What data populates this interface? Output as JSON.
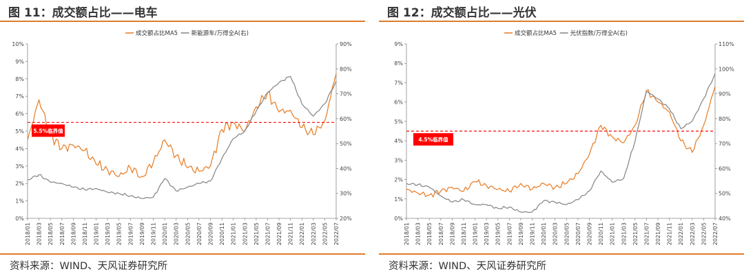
{
  "chart_data": [
    {
      "type": "line",
      "figure_title": "图 11：成交额占比——电车",
      "source": "资料来源：WIND、天风证券研究所",
      "legend_position": "top-center",
      "x_labels": [
        "2018/01",
        "2018/03",
        "2018/05",
        "2018/07",
        "2018/09",
        "2018/11",
        "2019/01",
        "2019/03",
        "2019/05",
        "2019/07",
        "2019/09",
        "2019/11",
        "2020/01",
        "2020/03",
        "2020/05",
        "2020/07",
        "2020/09",
        "2020/11",
        "2021/01",
        "2021/03",
        "2021/05",
        "2021/07",
        "2021/09",
        "2021/11",
        "2022/01",
        "2022/03",
        "2022/05",
        "2022/07"
      ],
      "left_axis": {
        "min": 0,
        "max": 10,
        "ticks": [
          "0%",
          "1%",
          "2%",
          "3%",
          "4%",
          "5%",
          "6%",
          "7%",
          "8%",
          "9%",
          "10%"
        ]
      },
      "right_axis": {
        "min": 20,
        "max": 90,
        "ticks": [
          "20%",
          "30%",
          "40%",
          "50%",
          "60%",
          "70%",
          "80%",
          "90%"
        ]
      },
      "threshold": {
        "value": 5.5,
        "label": "5.5%临界值",
        "color": "#ff0000"
      },
      "series": [
        {
          "name": "成交额占比MA5",
          "axis": "left",
          "color": "#e8822e",
          "x": [
            0,
            1,
            2,
            3,
            4,
            5,
            6,
            7,
            8,
            9,
            10,
            11,
            12,
            13,
            14,
            15,
            16,
            17,
            18,
            19,
            20,
            21,
            22,
            23,
            24,
            25,
            26,
            27
          ],
          "values": [
            4.5,
            6.8,
            4.8,
            4.0,
            4.2,
            3.9,
            3.1,
            2.8,
            2.4,
            2.9,
            2.4,
            3.2,
            4.5,
            3.6,
            2.9,
            2.7,
            3.0,
            5.1,
            5.5,
            5.0,
            6.4,
            7.2,
            6.1,
            6.2,
            5.2,
            4.8,
            5.6,
            8.3
          ]
        },
        {
          "name": "新能源车/万得全A(右)",
          "axis": "right",
          "color": "#8a8a8a",
          "x": [
            0,
            1,
            2,
            3,
            4,
            5,
            6,
            7,
            8,
            9,
            10,
            11,
            12,
            13,
            14,
            15,
            16,
            17,
            18,
            19,
            20,
            21,
            22,
            23,
            24,
            25,
            26,
            27
          ],
          "values": [
            35.5,
            37.5,
            34.5,
            34.0,
            32.5,
            31.5,
            32.0,
            30.5,
            30.0,
            29.0,
            28.0,
            28.5,
            36.0,
            31.0,
            32.5,
            34.0,
            35.0,
            44.0,
            52.0,
            55.0,
            63.0,
            70.5,
            74.5,
            77.0,
            66.0,
            61.0,
            66.0,
            75.0
          ]
        }
      ]
    },
    {
      "type": "line",
      "figure_title": "图 12：成交额占比——光伏",
      "source": "资料来源：WIND、天风证券研究所",
      "legend_position": "top-center",
      "x_labels": [
        "2018/01",
        "2018/03",
        "2018/05",
        "2018/07",
        "2018/09",
        "2018/11",
        "2019/01",
        "2019/03",
        "2019/05",
        "2019/07",
        "2019/09",
        "2019/11",
        "2020/01",
        "2020/03",
        "2020/05",
        "2020/07",
        "2020/09",
        "2020/11",
        "2021/01",
        "2021/03",
        "2021/05",
        "2021/07",
        "2021/09",
        "2021/11",
        "2022/01",
        "2022/03",
        "2022/05",
        "2022/07"
      ],
      "left_axis": {
        "min": 0,
        "max": 9,
        "ticks": [
          "0%",
          "1%",
          "2%",
          "3%",
          "4%",
          "5%",
          "6%",
          "7%",
          "8%",
          "9%"
        ]
      },
      "right_axis": {
        "min": 40,
        "max": 110,
        "ticks": [
          "40%",
          "50%",
          "60%",
          "70%",
          "80%",
          "90%",
          "100%",
          "110%"
        ]
      },
      "threshold": {
        "value": 4.5,
        "label": "4.5%临界值",
        "color": "#ff0000"
      },
      "series": [
        {
          "name": "成交额占比MA5",
          "axis": "left",
          "color": "#e8822e",
          "x": [
            0,
            1,
            2,
            3,
            4,
            5,
            6,
            7,
            8,
            9,
            10,
            11,
            12,
            13,
            14,
            15,
            16,
            17,
            18,
            19,
            20,
            21,
            22,
            23,
            24,
            25,
            26,
            27
          ],
          "values": [
            1.5,
            1.3,
            1.2,
            1.4,
            1.6,
            1.4,
            1.9,
            1.7,
            1.5,
            1.4,
            1.8,
            1.5,
            1.8,
            1.6,
            1.8,
            2.3,
            3.3,
            4.8,
            4.2,
            3.9,
            4.8,
            6.6,
            6.0,
            5.5,
            4.0,
            3.4,
            4.8,
            6.8
          ]
        },
        {
          "name": "光伏指数/万得全A(右)",
          "axis": "right",
          "color": "#8a8a8a",
          "x": [
            0,
            1,
            2,
            3,
            4,
            5,
            6,
            7,
            8,
            9,
            10,
            11,
            12,
            13,
            14,
            15,
            16,
            17,
            18,
            19,
            20,
            21,
            22,
            23,
            24,
            25,
            26,
            27
          ],
          "values": [
            54.0,
            53.5,
            52.5,
            49.0,
            46.5,
            47.5,
            45.5,
            45.5,
            44.0,
            44.5,
            42.5,
            42.5,
            47.0,
            46.5,
            45.5,
            47.5,
            51.0,
            59.0,
            54.5,
            56.0,
            71.0,
            91.0,
            88.0,
            84.0,
            76.0,
            79.0,
            88.0,
            98.0
          ]
        }
      ]
    }
  ]
}
